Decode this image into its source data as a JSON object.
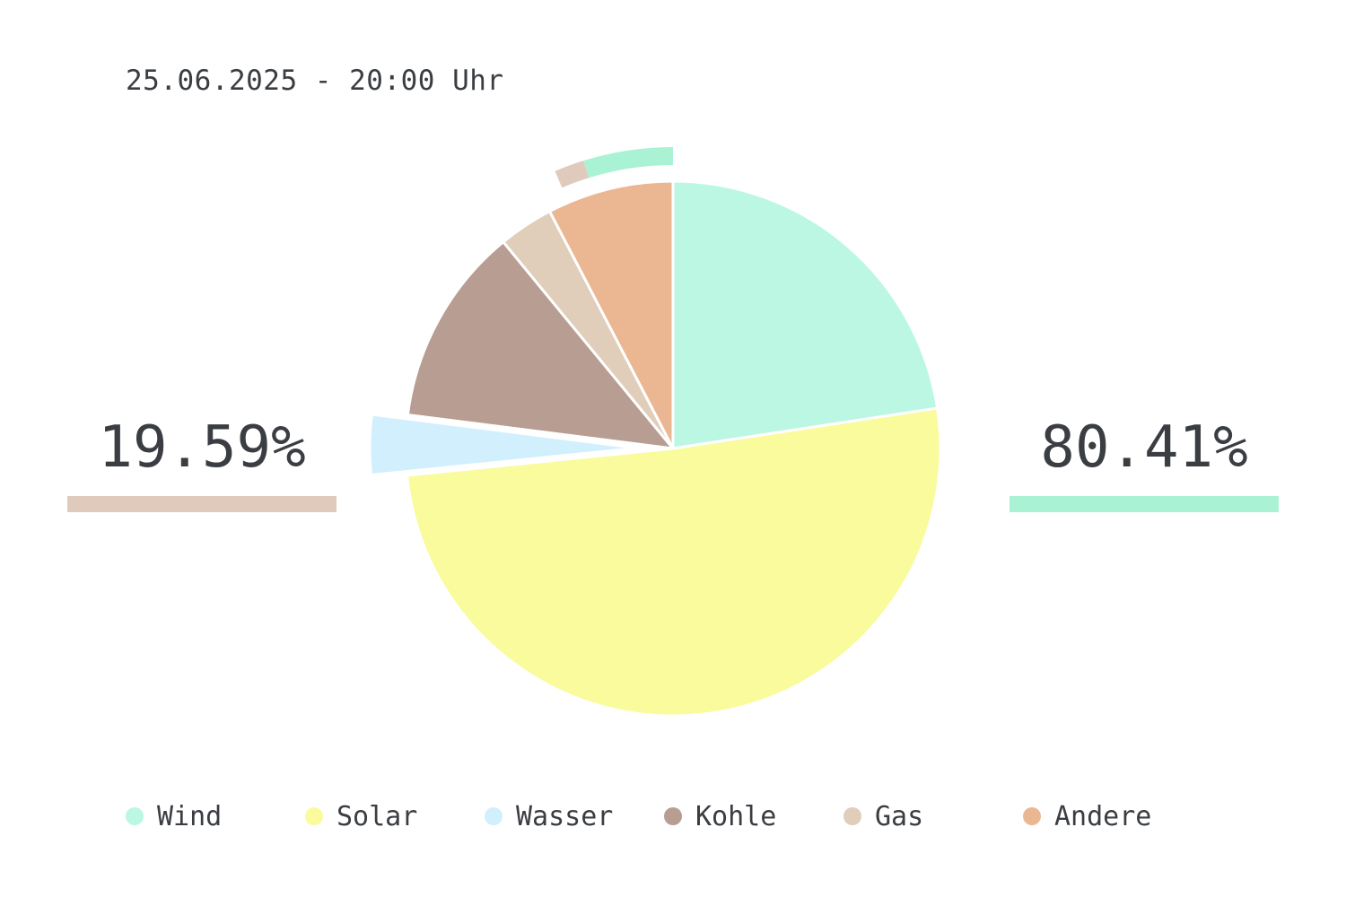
{
  "timestamp": "25.06.2025 - 20:00 Uhr",
  "summary": {
    "left_value": "19.59%",
    "right_value": "80.41%",
    "left_color": "#e0cabc",
    "right_color": "#aaf2d4"
  },
  "chart_data": {
    "type": "pie",
    "title": "",
    "categories": [
      "Wind",
      "Solar",
      "Wasser",
      "Kohle",
      "Gas",
      "Andere"
    ],
    "values": [
      22.5,
      50.6,
      3.6,
      12.0,
      3.3,
      7.6
    ],
    "colors": [
      "#bbf7e3",
      "#f9fb9c",
      "#d1effd",
      "#b89d93",
      "#e0cdba",
      "#ebb793"
    ],
    "exploded": [
      "Wasser"
    ],
    "outer_ring": [
      {
        "label": "Gas",
        "percent": 1.6,
        "color": "#e0cabc"
      },
      {
        "label": "Wind",
        "percent": 4.8,
        "color": "#aaf2d4"
      }
    ],
    "legend_position": "bottom"
  }
}
